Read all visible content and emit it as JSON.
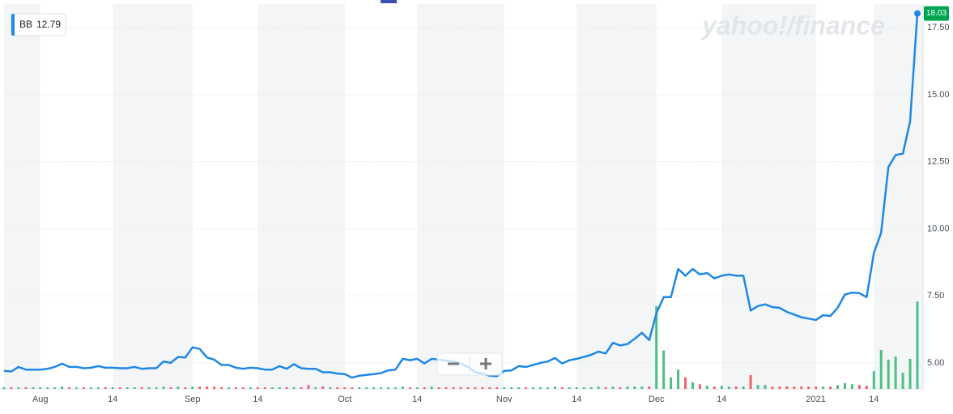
{
  "logo": "yahoo!/finance",
  "chart_data": {
    "type": "line",
    "categories": [
      null,
      null,
      null,
      null,
      null,
      "Aug",
      null,
      null,
      null,
      null,
      null,
      null,
      null,
      null,
      null,
      "14",
      null,
      null,
      null,
      null,
      null,
      null,
      null,
      null,
      null,
      null,
      "Sep",
      null,
      null,
      null,
      null,
      null,
      null,
      null,
      null,
      "14",
      null,
      null,
      null,
      null,
      null,
      null,
      null,
      null,
      null,
      null,
      null,
      "Oct",
      null,
      null,
      null,
      null,
      null,
      null,
      null,
      null,
      null,
      "14",
      null,
      null,
      null,
      null,
      null,
      null,
      null,
      null,
      null,
      null,
      null,
      "Nov",
      null,
      null,
      null,
      null,
      null,
      null,
      null,
      null,
      null,
      "14",
      null,
      null,
      null,
      null,
      null,
      null,
      null,
      null,
      null,
      null,
      "Dec",
      null,
      null,
      null,
      null,
      null,
      null,
      null,
      null,
      "14",
      null,
      null,
      null,
      null,
      null,
      null,
      null,
      null,
      null,
      null,
      null,
      null,
      "2021",
      null,
      null,
      null,
      null,
      null,
      null,
      null,
      "14",
      null,
      null,
      null,
      null,
      null,
      null
    ],
    "series": [
      {
        "name": "BB",
        "color": "#1e88e5",
        "values": [
          4.7,
          4.68,
          4.85,
          4.75,
          4.75,
          4.75,
          4.78,
          4.85,
          4.97,
          4.85,
          4.85,
          4.8,
          4.82,
          4.88,
          4.82,
          4.82,
          4.8,
          4.8,
          4.85,
          4.78,
          4.8,
          4.8,
          5.05,
          5.0,
          5.22,
          5.2,
          5.58,
          5.52,
          5.2,
          5.12,
          4.92,
          4.92,
          4.82,
          4.78,
          4.82,
          4.8,
          4.75,
          4.75,
          4.88,
          4.78,
          4.95,
          4.8,
          4.78,
          4.78,
          4.65,
          4.65,
          4.6,
          4.58,
          4.45,
          4.52,
          4.55,
          4.58,
          4.62,
          4.72,
          4.75,
          5.15,
          5.1,
          5.15,
          4.98,
          5.15,
          5.12,
          5.08,
          5.05,
          4.98,
          4.85,
          4.65,
          4.6,
          4.52,
          4.5,
          4.7,
          4.72,
          4.88,
          4.85,
          4.92,
          5.0,
          5.05,
          5.18,
          4.98,
          5.1,
          5.15,
          5.22,
          5.3,
          5.42,
          5.35,
          5.75,
          5.65,
          5.7,
          5.9,
          6.12,
          5.85,
          6.85,
          7.45,
          7.45,
          8.5,
          8.25,
          8.5,
          8.3,
          8.35,
          8.15,
          8.25,
          8.3,
          8.25,
          8.25,
          6.95,
          7.12,
          7.18,
          7.08,
          7.05,
          6.9,
          6.8,
          6.7,
          6.65,
          6.6,
          6.78,
          6.75,
          7.05,
          7.55,
          7.62,
          7.6,
          7.45,
          9.1,
          9.85,
          12.3,
          12.75,
          12.8,
          14.0,
          18.03
        ]
      }
    ],
    "legend_value": 12.79,
    "ylim": [
      4.03,
      18.38
    ],
    "yticks": [
      {
        "value": 5,
        "label": "5.00"
      },
      {
        "value": 7.5,
        "label": "7.50"
      },
      {
        "value": 10,
        "label": "10.00"
      },
      {
        "value": 12.5,
        "label": "12.50"
      },
      {
        "value": 15,
        "label": "15.00"
      },
      {
        "value": 17.5,
        "label": "17.50"
      }
    ],
    "grid": true,
    "volume": {
      "up_color": "#4cbf85",
      "down_color": "#f2606d",
      "y2lim": [
        0,
        100
      ],
      "values": [
        0.4,
        0.4,
        0.4,
        0.4,
        0.4,
        0.4,
        0.4,
        0.4,
        0.6,
        0.4,
        0.4,
        0.4,
        0.4,
        0.4,
        0.4,
        0.4,
        0.4,
        0.4,
        0.4,
        0.4,
        0.4,
        0.4,
        0.6,
        0.4,
        0.6,
        0.4,
        0.6,
        0.6,
        0.6,
        0.6,
        0.4,
        0.4,
        0.4,
        0.4,
        0.4,
        0.4,
        0.4,
        0.4,
        0.4,
        0.4,
        0.4,
        0.4,
        1.0,
        0.4,
        0.6,
        0.4,
        0.4,
        0.4,
        0.4,
        0.4,
        0.4,
        0.4,
        0.4,
        0.4,
        0.4,
        0.6,
        0.4,
        0.4,
        0.4,
        0.6,
        0.4,
        0.4,
        0.4,
        0.4,
        0.4,
        0.4,
        0.4,
        0.4,
        0.4,
        0.4,
        0.4,
        0.4,
        0.4,
        0.4,
        0.4,
        0.4,
        0.6,
        0.4,
        0.4,
        0.4,
        0.4,
        0.4,
        0.6,
        0.4,
        0.6,
        0.4,
        0.6,
        0.6,
        0.6,
        0.6,
        21.5,
        10.0,
        3.0,
        5.0,
        3.0,
        1.7,
        1.2,
        0.8,
        0.6,
        0.8,
        0.6,
        0.6,
        0.6,
        3.6,
        1.0,
        1.0,
        0.6,
        0.6,
        0.6,
        0.6,
        0.6,
        0.6,
        0.6,
        0.6,
        0.6,
        1.0,
        1.5,
        1.2,
        1.0,
        0.8,
        4.6,
        10.1,
        7.6,
        8.4,
        4.2,
        7.8,
        22.7
      ]
    }
  }
}
